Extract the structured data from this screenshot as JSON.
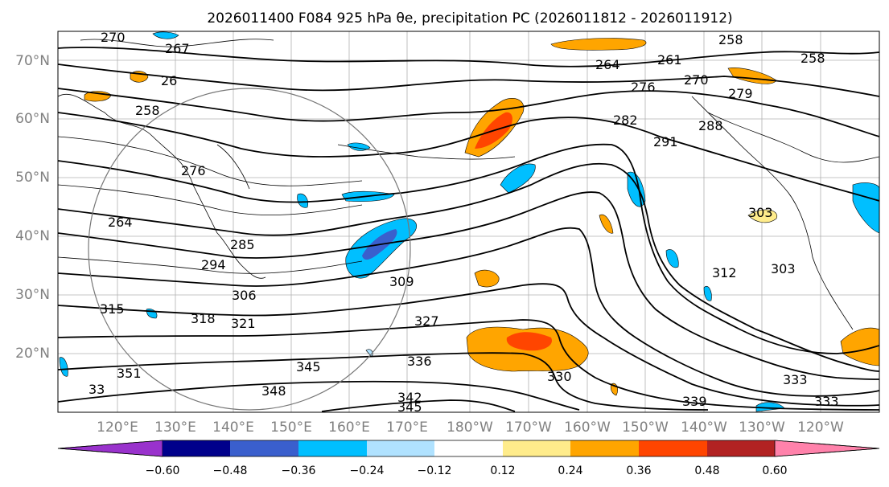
{
  "title": "2026011400 F084 925 hPa θe, precipitation PC (2026011812 - 2026011912)",
  "map": {
    "lat_labels": [
      "70°N",
      "60°N",
      "50°N",
      "40°N",
      "30°N",
      "20°N"
    ],
    "lon_labels": [
      "120°E",
      "130°E",
      "140°E",
      "150°E",
      "160°E",
      "170°E",
      "180°W",
      "170°W",
      "160°W",
      "150°W",
      "140°W",
      "130°W",
      "120°W"
    ],
    "contour_labels": [
      "270",
      "267",
      "258",
      "264",
      "261",
      "276",
      "270",
      "279",
      "258",
      "26",
      "258",
      "264",
      "285",
      "294",
      "306",
      "318",
      "321",
      "315",
      "309",
      "327",
      "336",
      "330",
      "333",
      "339",
      "342",
      "345",
      "345",
      "348",
      "291",
      "288",
      "282",
      "303",
      "312",
      "303",
      "333",
      "33",
      "351",
      "276"
    ]
  },
  "colorbar": {
    "ticks": [
      "−0.60",
      "−0.48",
      "−0.36",
      "−0.24",
      "−0.12",
      "0.12",
      "0.24",
      "0.36",
      "0.48",
      "0.60"
    ],
    "colors": [
      "#9932cc",
      "#00008b",
      "#3a5fcd",
      "#00bfff",
      "#b0e2ff",
      "#ffffff",
      "#ffec8b",
      "#ffa500",
      "#ff4500",
      "#b22222",
      "#ff82ab"
    ]
  }
}
